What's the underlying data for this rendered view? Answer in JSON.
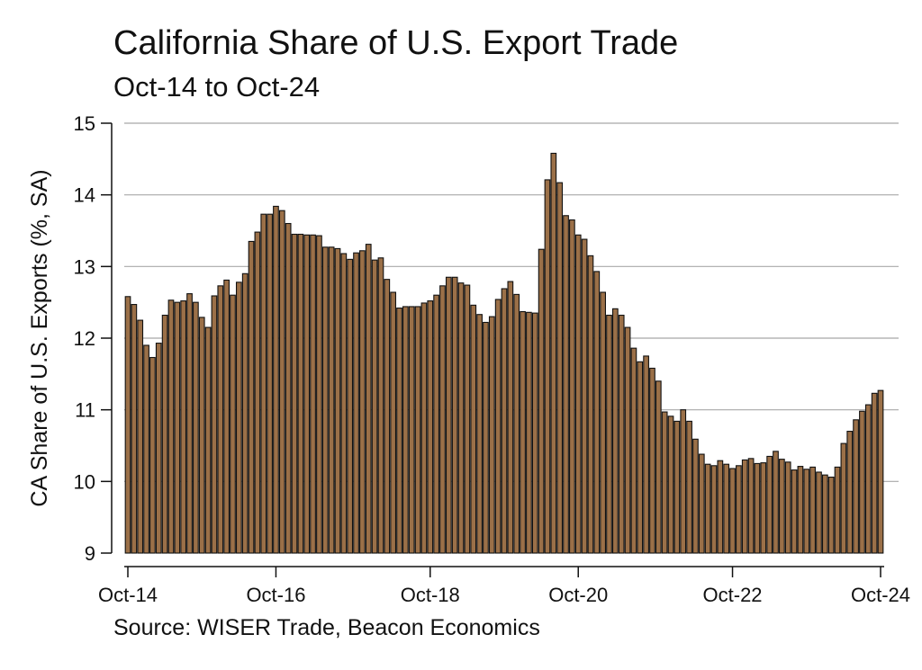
{
  "chart_data": {
    "type": "bar",
    "title": "California Share of U.S. Export Trade",
    "subtitle": "Oct-14 to Oct-24",
    "ylabel": "CA Share of U.S. Exports (%, SA)",
    "xlabel": "",
    "source": "Source: WISER Trade, Beacon Economics",
    "ylim": [
      9,
      15
    ],
    "yticks": [
      9,
      10,
      11,
      12,
      13,
      14,
      15
    ],
    "xtick_labels": [
      "Oct-14",
      "Oct-16",
      "Oct-18",
      "Oct-20",
      "Oct-22",
      "Oct-24"
    ],
    "grid": "horizontal",
    "bar_color": "#9b7048",
    "bar_edge_color": "#111111",
    "start": "Oct-14",
    "end": "Oct-24",
    "values": [
      12.58,
      12.47,
      12.25,
      11.9,
      11.73,
      11.93,
      12.32,
      12.53,
      12.5,
      12.52,
      12.62,
      12.5,
      12.29,
      12.15,
      12.59,
      12.73,
      12.81,
      12.6,
      12.78,
      12.9,
      13.35,
      13.48,
      13.73,
      13.73,
      13.84,
      13.78,
      13.6,
      13.45,
      13.45,
      13.44,
      13.44,
      13.43,
      13.27,
      13.27,
      13.25,
      13.18,
      13.1,
      13.19,
      13.22,
      13.31,
      13.09,
      13.12,
      12.82,
      12.64,
      12.42,
      12.44,
      12.44,
      12.44,
      12.49,
      12.52,
      12.6,
      12.73,
      12.85,
      12.85,
      12.77,
      12.74,
      12.46,
      12.33,
      12.22,
      12.3,
      12.54,
      12.69,
      12.79,
      12.61,
      12.37,
      12.36,
      12.35,
      13.24,
      14.21,
      14.58,
      14.17,
      13.71,
      13.65,
      13.44,
      13.38,
      13.15,
      12.93,
      12.64,
      12.32,
      12.41,
      12.32,
      12.15,
      11.86,
      11.67,
      11.75,
      11.58,
      11.4,
      10.97,
      10.91,
      10.84,
      11.0,
      10.84,
      10.59,
      10.38,
      10.24,
      10.22,
      10.29,
      10.24,
      10.18,
      10.22,
      10.3,
      10.32,
      10.25,
      10.26,
      10.35,
      10.42,
      10.31,
      10.27,
      10.16,
      10.21,
      10.17,
      10.2,
      10.13,
      10.09,
      10.06,
      10.2,
      10.53,
      10.7,
      10.86,
      10.98,
      11.07,
      11.23,
      11.27
    ]
  }
}
